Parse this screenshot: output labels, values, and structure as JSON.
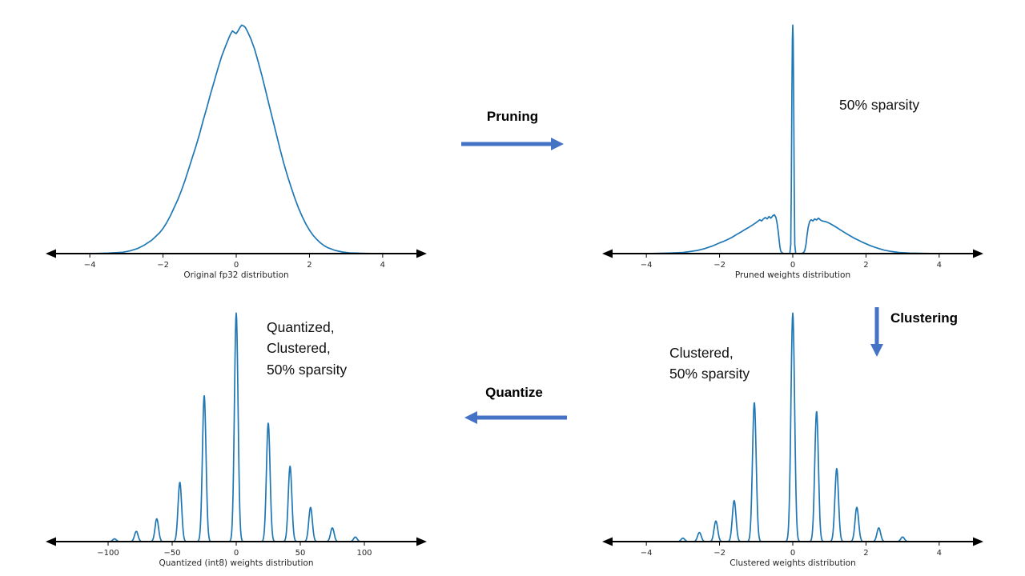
{
  "colors": {
    "curve": "#1f77b4",
    "axis": "#000000",
    "tick_label": "#262626",
    "arrow": "#4472c4",
    "text": "#111111"
  },
  "flow": {
    "pruning_label": "Pruning",
    "clustering_label": "Clustering",
    "quantize_label": "Quantize"
  },
  "annotations": {
    "pruned": "50% sparsity",
    "clustered": [
      "Clustered,",
      "50% sparsity"
    ],
    "quantized": [
      "Quantized,",
      "Clustered,",
      "50% sparsity"
    ]
  },
  "chart_data": [
    {
      "type": "line",
      "xlabel": "Original fp32 distribution",
      "xlim": [
        -4.9,
        4.9
      ],
      "ylim": [
        0,
        1.04
      ],
      "grid": false,
      "xticks": [
        -4,
        -2,
        0,
        2,
        4
      ],
      "xtick_labels": [
        "−4",
        "−2",
        "0",
        "2",
        "4"
      ],
      "points": [
        [
          -4,
          0
        ],
        [
          -3.5,
          0.002
        ],
        [
          -3.1,
          0.006
        ],
        [
          -2.9,
          0.012
        ],
        [
          -2.7,
          0.022
        ],
        [
          -2.5,
          0.038
        ],
        [
          -2.3,
          0.06
        ],
        [
          -2.1,
          0.09
        ],
        [
          -2,
          0.11
        ],
        [
          -1.9,
          0.135
        ],
        [
          -1.8,
          0.165
        ],
        [
          -1.7,
          0.2
        ],
        [
          -1.6,
          0.235
        ],
        [
          -1.5,
          0.275
        ],
        [
          -1.4,
          0.32
        ],
        [
          -1.3,
          0.37
        ],
        [
          -1.2,
          0.42
        ],
        [
          -1.1,
          0.47
        ],
        [
          -1,
          0.525
        ],
        [
          -0.9,
          0.585
        ],
        [
          -0.8,
          0.64
        ],
        [
          -0.7,
          0.7
        ],
        [
          -0.6,
          0.755
        ],
        [
          -0.5,
          0.81
        ],
        [
          -0.4,
          0.862
        ],
        [
          -0.3,
          0.905
        ],
        [
          -0.2,
          0.945
        ],
        [
          -0.15,
          0.962
        ],
        [
          -0.1,
          0.975
        ],
        [
          -0.05,
          0.968
        ],
        [
          0,
          0.963
        ],
        [
          0.05,
          0.975
        ],
        [
          0.1,
          0.99
        ],
        [
          0.15,
          1.0
        ],
        [
          0.2,
          0.997
        ],
        [
          0.25,
          0.99
        ],
        [
          0.3,
          0.975
        ],
        [
          0.4,
          0.94
        ],
        [
          0.5,
          0.895
        ],
        [
          0.6,
          0.84
        ],
        [
          0.7,
          0.78
        ],
        [
          0.8,
          0.715
        ],
        [
          0.9,
          0.65
        ],
        [
          1,
          0.585
        ],
        [
          1.1,
          0.52
        ],
        [
          1.2,
          0.455
        ],
        [
          1.3,
          0.395
        ],
        [
          1.4,
          0.34
        ],
        [
          1.5,
          0.29
        ],
        [
          1.6,
          0.243
        ],
        [
          1.7,
          0.2
        ],
        [
          1.8,
          0.163
        ],
        [
          1.9,
          0.13
        ],
        [
          2,
          0.103
        ],
        [
          2.1,
          0.08
        ],
        [
          2.2,
          0.062
        ],
        [
          2.3,
          0.047
        ],
        [
          2.4,
          0.035
        ],
        [
          2.5,
          0.026
        ],
        [
          2.7,
          0.014
        ],
        [
          2.9,
          0.007
        ],
        [
          3.1,
          0.003
        ],
        [
          3.5,
          0.001
        ],
        [
          3.9,
          0
        ]
      ]
    },
    {
      "type": "line",
      "xlabel": "Pruned weights distribution",
      "xlim": [
        -4.9,
        4.9
      ],
      "ylim": [
        0,
        1.04
      ],
      "grid": false,
      "xticks": [
        -4,
        -2,
        0,
        2,
        4
      ],
      "xtick_labels": [
        "−4",
        "−2",
        "0",
        "2",
        "4"
      ],
      "points": [
        [
          -4,
          0
        ],
        [
          -3.4,
          0.002
        ],
        [
          -3,
          0.005
        ],
        [
          -2.8,
          0.009
        ],
        [
          -2.6,
          0.014
        ],
        [
          -2.4,
          0.022
        ],
        [
          -2.2,
          0.033
        ],
        [
          -2.1,
          0.04
        ],
        [
          -2,
          0.047
        ],
        [
          -1.9,
          0.053
        ],
        [
          -1.8,
          0.06
        ],
        [
          -1.7,
          0.068
        ],
        [
          -1.6,
          0.077
        ],
        [
          -1.5,
          0.087
        ],
        [
          -1.4,
          0.096
        ],
        [
          -1.3,
          0.106
        ],
        [
          -1.2,
          0.115
        ],
        [
          -1.1,
          0.125
        ],
        [
          -1,
          0.136
        ],
        [
          -0.95,
          0.142
        ],
        [
          -0.9,
          0.148
        ],
        [
          -0.85,
          0.143
        ],
        [
          -0.8,
          0.152
        ],
        [
          -0.75,
          0.158
        ],
        [
          -0.7,
          0.152
        ],
        [
          -0.65,
          0.162
        ],
        [
          -0.6,
          0.155
        ],
        [
          -0.55,
          0.165
        ],
        [
          -0.5,
          0.17
        ],
        [
          -0.46,
          0.158
        ],
        [
          -0.43,
          0.135
        ],
        [
          -0.4,
          0.1
        ],
        [
          -0.37,
          0.055
        ],
        [
          -0.35,
          0.028
        ],
        [
          -0.33,
          0.012
        ],
        [
          -0.3,
          0.004
        ],
        [
          -0.25,
          0.001
        ],
        [
          -0.18,
          0
        ],
        [
          -0.08,
          0
        ],
        [
          -0.055,
          0.04
        ],
        [
          -0.04,
          0.3
        ],
        [
          -0.025,
          0.7
        ],
        [
          -0.012,
          0.94
        ],
        [
          0,
          1
        ],
        [
          0.012,
          0.94
        ],
        [
          0.025,
          0.7
        ],
        [
          0.04,
          0.3
        ],
        [
          0.055,
          0.04
        ],
        [
          0.08,
          0
        ],
        [
          0.18,
          0
        ],
        [
          0.25,
          0.001
        ],
        [
          0.3,
          0.005
        ],
        [
          0.33,
          0.015
        ],
        [
          0.36,
          0.04
        ],
        [
          0.39,
          0.08
        ],
        [
          0.42,
          0.115
        ],
        [
          0.46,
          0.14
        ],
        [
          0.5,
          0.148
        ],
        [
          0.55,
          0.143
        ],
        [
          0.6,
          0.152
        ],
        [
          0.65,
          0.147
        ],
        [
          0.7,
          0.155
        ],
        [
          0.75,
          0.148
        ],
        [
          0.8,
          0.143
        ],
        [
          0.9,
          0.14
        ],
        [
          1,
          0.133
        ],
        [
          1.1,
          0.124
        ],
        [
          1.2,
          0.114
        ],
        [
          1.3,
          0.104
        ],
        [
          1.4,
          0.094
        ],
        [
          1.5,
          0.084
        ],
        [
          1.6,
          0.075
        ],
        [
          1.7,
          0.066
        ],
        [
          1.8,
          0.058
        ],
        [
          1.9,
          0.05
        ],
        [
          2,
          0.043
        ],
        [
          2.1,
          0.036
        ],
        [
          2.2,
          0.03
        ],
        [
          2.35,
          0.022
        ],
        [
          2.5,
          0.015
        ],
        [
          2.7,
          0.009
        ],
        [
          2.9,
          0.005
        ],
        [
          3.2,
          0.002
        ],
        [
          3.6,
          0.001
        ],
        [
          4,
          0
        ]
      ]
    },
    {
      "type": "spikes",
      "xlabel": "Clustered weights distribution",
      "xlim": [
        -4.9,
        4.9
      ],
      "ylim": [
        0,
        1.04
      ],
      "grid": false,
      "xticks": [
        -4,
        -2,
        0,
        2,
        4
      ],
      "xtick_labels": [
        "−4",
        "−2",
        "0",
        "2",
        "4"
      ],
      "spike_sigma": 0.05,
      "spikes": [
        [
          -3.0,
          0.015
        ],
        [
          -2.55,
          0.04
        ],
        [
          -2.1,
          0.09
        ],
        [
          -1.6,
          0.18
        ],
        [
          -1.05,
          0.61
        ],
        [
          0,
          1.0
        ],
        [
          0.65,
          0.57
        ],
        [
          1.2,
          0.32
        ],
        [
          1.75,
          0.15
        ],
        [
          2.35,
          0.06
        ],
        [
          3.0,
          0.02
        ]
      ]
    },
    {
      "type": "spikes",
      "xlabel": "Quantized (int8) weights distribution",
      "xlim": [
        -140,
        140
      ],
      "ylim": [
        0,
        1.04
      ],
      "grid": false,
      "xticks": [
        -100,
        -50,
        0,
        50,
        100
      ],
      "xtick_labels": [
        "−100",
        "−50",
        "0",
        "50",
        "100"
      ],
      "spike_sigma": 1.4,
      "spikes": [
        [
          -95,
          0.012
        ],
        [
          -78,
          0.045
        ],
        [
          -62,
          0.1
        ],
        [
          -44,
          0.26
        ],
        [
          -25,
          0.64
        ],
        [
          0,
          1.0
        ],
        [
          25,
          0.52
        ],
        [
          42,
          0.33
        ],
        [
          58,
          0.15
        ],
        [
          75,
          0.06
        ],
        [
          93,
          0.02
        ]
      ]
    }
  ]
}
